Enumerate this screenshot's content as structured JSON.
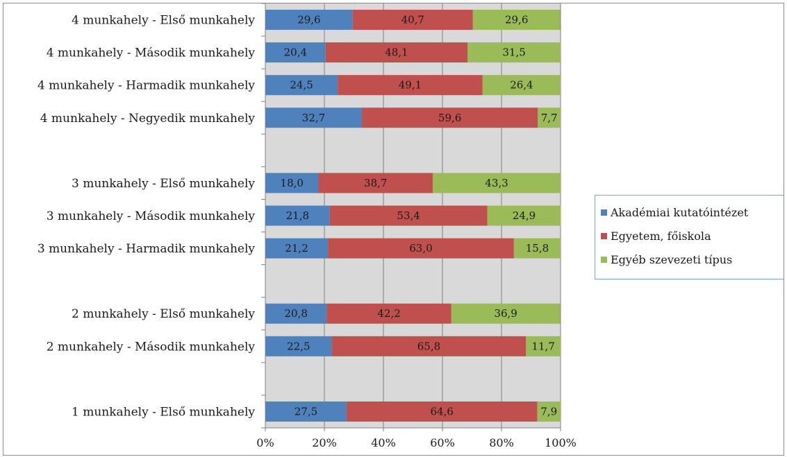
{
  "chart_data": {
    "type": "bar",
    "orientation": "horizontal",
    "stacked": "percent",
    "categories": [
      "4 munkahely - Első munkahely",
      "4 munkahely - Második munkahely",
      "4 munkahely - Harmadik munkahely",
      "4 munkahely - Negyedik munkahely",
      "",
      "3 munkahely - Első munkahely",
      "3 munkahely - Második munkahely",
      "3 munkahely - Harmadik munkahely",
      "",
      "2 munkahely - Első munkahely",
      "2 munkahely - Második munkahely",
      "",
      "1 munkahely - Első munkahely"
    ],
    "series": [
      {
        "name": "Akadémiai kutatóintézet",
        "color": "#4f81bd",
        "values": [
          29.6,
          20.4,
          24.5,
          32.7,
          null,
          18.0,
          21.8,
          21.2,
          null,
          20.8,
          22.5,
          null,
          27.5
        ],
        "labels": [
          "29,6",
          "20,4",
          "24,5",
          "32,7",
          "",
          "18,0",
          "21,8",
          "21,2",
          "",
          "20,8",
          "22,5",
          "",
          "27,5"
        ]
      },
      {
        "name": "Egyetem, főiskola",
        "color": "#c0504d",
        "values": [
          40.7,
          48.1,
          49.1,
          59.6,
          null,
          38.7,
          53.4,
          63.0,
          null,
          42.2,
          65.8,
          null,
          64.6
        ],
        "labels": [
          "40,7",
          "48,1",
          "49,1",
          "59,6",
          "",
          "38,7",
          "53,4",
          "63,0",
          "",
          "42,2",
          "65,8",
          "",
          "64,6"
        ]
      },
      {
        "name": "Egyéb szevezeti típus",
        "color": "#9bbb59",
        "values": [
          29.6,
          31.5,
          26.4,
          7.7,
          null,
          43.3,
          24.9,
          15.8,
          null,
          36.9,
          11.7,
          null,
          7.9
        ],
        "labels": [
          "29,6",
          "31,5",
          "26,4",
          "7,7",
          "",
          "43,3",
          "24,9",
          "15,8",
          "",
          "36,9",
          "11,7",
          "",
          "7,9"
        ]
      }
    ],
    "x_ticks": [
      "0%",
      "20%",
      "40%",
      "60%",
      "80%",
      "100%"
    ],
    "xlim": [
      0,
      100
    ],
    "grid": true,
    "legend_position": "right"
  }
}
